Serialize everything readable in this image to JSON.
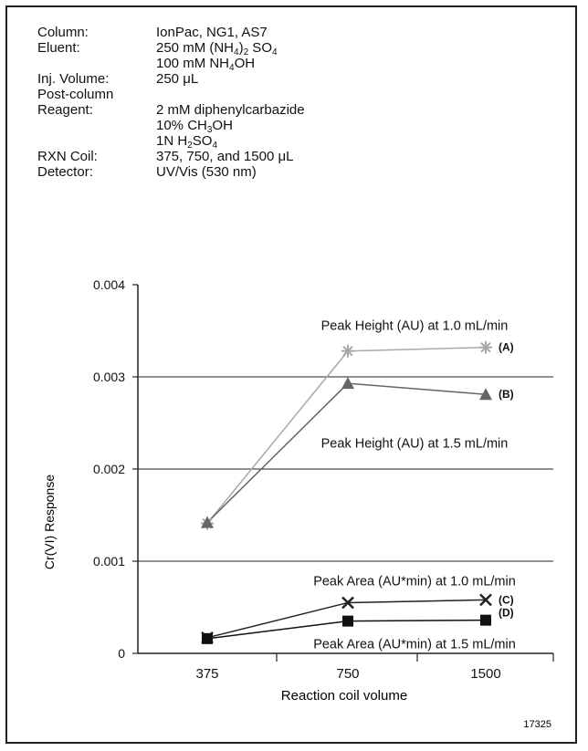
{
  "conditions": [
    {
      "label": "Column:",
      "value": [
        "IonPac, NG1, AS7"
      ]
    },
    {
      "label": "Eluent:",
      "value": [
        "250 mM (NH",
        "4",
        ")",
        "2",
        " SO",
        "4"
      ],
      "sub_idx": [
        1,
        3,
        5
      ]
    },
    {
      "label": "",
      "value": [
        "100 mM NH",
        "4",
        "OH"
      ],
      "sub_idx": [
        1
      ]
    },
    {
      "label": "Inj. Volume:",
      "value": [
        "250 μL"
      ]
    },
    {
      "label": "Post-column",
      "value": [
        ""
      ]
    },
    {
      "label": "Reagent:",
      "value": [
        "2 mM diphenylcarbazide"
      ]
    },
    {
      "label": "",
      "value": [
        "10% CH",
        "3",
        "OH"
      ],
      "sub_idx": [
        1
      ]
    },
    {
      "label": "",
      "value": [
        "1N H",
        "2",
        "SO",
        "4"
      ],
      "sub_idx": [
        1,
        3
      ]
    },
    {
      "label": "RXN Coil:",
      "value": [
        "375, 750, and 1500 μL"
      ]
    },
    {
      "label": "Detector:",
      "value": [
        "UV/Vis (530 nm)"
      ]
    }
  ],
  "chart_data": {
    "type": "line",
    "categories": [
      "375",
      "750",
      "1500"
    ],
    "xlabel": "Reaction coil volume",
    "ylabel": "Cr(VI) Response",
    "ylim": [
      0,
      0.004
    ],
    "yticks": [
      0,
      0.001,
      0.002,
      0.003,
      0.004
    ],
    "ytick_labels": [
      "0",
      "0.001",
      "0.002",
      "0.003",
      "0.004"
    ],
    "grid": "horizontal at 0.003, 0.002, 0.001",
    "series": [
      {
        "name": "Peak Height (AU) at 1.0 mL/min",
        "tag": "(A)",
        "marker": "asterisk",
        "color": "#a8a8a8",
        "values": [
          0.00141,
          0.00328,
          0.00332
        ]
      },
      {
        "name": "Peak Height (AU) at 1.5 mL/min",
        "tag": "(B)",
        "marker": "triangle",
        "color": "#666666",
        "values": [
          0.00142,
          0.00293,
          0.00281
        ]
      },
      {
        "name": "Peak Area (AU*min) at 1.0 mL/min",
        "tag": "(C)",
        "marker": "x",
        "color": "#222222",
        "values": [
          0.00017,
          0.00055,
          0.00058
        ]
      },
      {
        "name": "Peak Area (AU*min) at 1.5 mL/min",
        "tag": "(D)",
        "marker": "square",
        "color": "#111111",
        "values": [
          0.00016,
          0.00035,
          0.00036
        ]
      }
    ],
    "annotation": "17325"
  }
}
